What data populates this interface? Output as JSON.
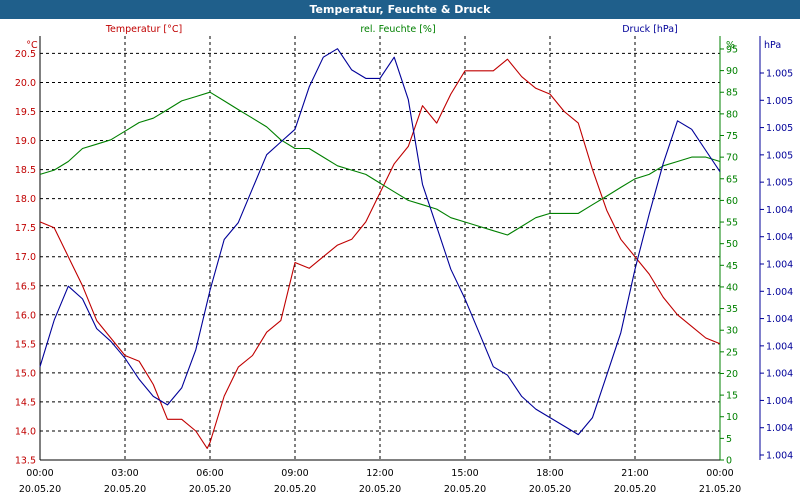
{
  "window_title": "Temperatur, Feuchte & Druck",
  "colors": {
    "temperature": "#c00000",
    "humidity": "#008000",
    "pressure": "#000099",
    "titlebar": "#1f5f8b",
    "axis_text": "#000000"
  },
  "chart_data": {
    "type": "line",
    "title": "Temperatur, Feuchte & Druck",
    "grid": true,
    "x_ticks": [
      {
        "time": "00:00",
        "date": "20.05.20"
      },
      {
        "time": "03:00",
        "date": "20.05.20"
      },
      {
        "time": "06:00",
        "date": "20.05.20"
      },
      {
        "time": "09:00",
        "date": "20.05.20"
      },
      {
        "time": "12:00",
        "date": "20.05.20"
      },
      {
        "time": "15:00",
        "date": "20.05.20"
      },
      {
        "time": "18:00",
        "date": "20.05.20"
      },
      {
        "time": "21:00",
        "date": "20.05.20"
      },
      {
        "time": "00:00",
        "date": "21.05.20"
      }
    ],
    "x_range_hours": [
      0,
      24
    ],
    "axes": {
      "temperature": {
        "label": "Temperatur [°C]",
        "unit": "°C",
        "ylim": [
          13.5,
          20.8
        ],
        "ticks": [
          "13.5",
          "14.0",
          "14.5",
          "15.0",
          "15.5",
          "16.0",
          "16.5",
          "17.0",
          "17.5",
          "18.0",
          "18.5",
          "19.0",
          "19.5",
          "20.0",
          "20.5"
        ]
      },
      "humidity": {
        "label": "rel. Feuchte [%]",
        "unit": "%",
        "ylim": [
          0,
          98
        ],
        "ticks": [
          "0",
          "5",
          "10",
          "15",
          "20",
          "25",
          "30",
          "35",
          "40",
          "45",
          "50",
          "55",
          "60",
          "65",
          "70",
          "75",
          "80",
          "85",
          "90",
          "95"
        ]
      },
      "pressure": {
        "unit": "hPa",
        "ylim": [
          0,
          1
        ],
        "ticks": [
          "1.004",
          "1.004",
          "1.004",
          "1.004",
          "1.004",
          "1.004",
          "1.004",
          "1.004",
          "1.004",
          "1.004",
          "1.005",
          "1.005",
          "1.005",
          "1.005",
          "1.005"
        ]
      }
    },
    "series": [
      {
        "name": "Temperatur [°C]",
        "axis": "temperature",
        "points": [
          [
            0,
            17.6
          ],
          [
            0.5,
            17.5
          ],
          [
            1,
            17.0
          ],
          [
            1.5,
            16.5
          ],
          [
            2,
            15.9
          ],
          [
            2.5,
            15.6
          ],
          [
            3,
            15.3
          ],
          [
            3.5,
            15.2
          ],
          [
            4,
            14.8
          ],
          [
            4.5,
            14.2
          ],
          [
            5,
            14.2
          ],
          [
            5.5,
            14.0
          ],
          [
            5.9,
            13.7
          ],
          [
            6,
            13.8
          ],
          [
            6.5,
            14.6
          ],
          [
            7,
            15.1
          ],
          [
            7.5,
            15.3
          ],
          [
            8,
            15.7
          ],
          [
            8.5,
            15.9
          ],
          [
            9,
            16.9
          ],
          [
            9.5,
            16.8
          ],
          [
            10,
            17.0
          ],
          [
            10.5,
            17.2
          ],
          [
            11,
            17.3
          ],
          [
            11.5,
            17.6
          ],
          [
            12,
            18.1
          ],
          [
            12.5,
            18.6
          ],
          [
            13,
            18.9
          ],
          [
            13.5,
            19.6
          ],
          [
            14,
            19.3
          ],
          [
            14.5,
            19.8
          ],
          [
            15,
            20.2
          ],
          [
            15.5,
            20.2
          ],
          [
            16,
            20.2
          ],
          [
            16.5,
            20.4
          ],
          [
            17,
            20.1
          ],
          [
            17.5,
            19.9
          ],
          [
            18,
            19.8
          ],
          [
            18.5,
            19.5
          ],
          [
            19,
            19.3
          ],
          [
            19.5,
            18.5
          ],
          [
            20,
            17.8
          ],
          [
            20.5,
            17.3
          ],
          [
            21,
            17.0
          ],
          [
            21.5,
            16.7
          ],
          [
            22,
            16.3
          ],
          [
            22.5,
            16.0
          ],
          [
            23,
            15.8
          ],
          [
            23.5,
            15.6
          ],
          [
            24,
            15.5
          ]
        ]
      },
      {
        "name": "rel. Feuchte [%]",
        "axis": "humidity",
        "points": [
          [
            0,
            66
          ],
          [
            0.5,
            67
          ],
          [
            1,
            69
          ],
          [
            1.5,
            72
          ],
          [
            2,
            73
          ],
          [
            2.5,
            74
          ],
          [
            3,
            76
          ],
          [
            3.5,
            78
          ],
          [
            4,
            79
          ],
          [
            4.5,
            81
          ],
          [
            5,
            83
          ],
          [
            5.5,
            84
          ],
          [
            6,
            85
          ],
          [
            6.5,
            83
          ],
          [
            7,
            81
          ],
          [
            7.5,
            79
          ],
          [
            8,
            77
          ],
          [
            8.5,
            74
          ],
          [
            9,
            72
          ],
          [
            9.5,
            72
          ],
          [
            10,
            70
          ],
          [
            10.5,
            68
          ],
          [
            11,
            67
          ],
          [
            11.5,
            66
          ],
          [
            12,
            64
          ],
          [
            12.5,
            62
          ],
          [
            13,
            60
          ],
          [
            13.5,
            59
          ],
          [
            14,
            58
          ],
          [
            14.5,
            56
          ],
          [
            15,
            55
          ],
          [
            15.5,
            54
          ],
          [
            16,
            53
          ],
          [
            16.5,
            52
          ],
          [
            17,
            54
          ],
          [
            17.5,
            56
          ],
          [
            18,
            57
          ],
          [
            18.5,
            57
          ],
          [
            19,
            57
          ],
          [
            19.5,
            59
          ],
          [
            20,
            61
          ],
          [
            20.5,
            63
          ],
          [
            21,
            65
          ],
          [
            21.5,
            66
          ],
          [
            22,
            68
          ],
          [
            22.5,
            69
          ],
          [
            23,
            70
          ],
          [
            23.5,
            70
          ],
          [
            24,
            69
          ]
        ]
      },
      {
        "name": "Druck [hPa]",
        "axis": "pressure",
        "points": [
          [
            0,
            0.22
          ],
          [
            0.5,
            0.33
          ],
          [
            1,
            0.41
          ],
          [
            1.5,
            0.38
          ],
          [
            2,
            0.31
          ],
          [
            2.5,
            0.28
          ],
          [
            3,
            0.24
          ],
          [
            3.5,
            0.19
          ],
          [
            4,
            0.15
          ],
          [
            4.5,
            0.13
          ],
          [
            5,
            0.17
          ],
          [
            5.5,
            0.26
          ],
          [
            6,
            0.4
          ],
          [
            6.5,
            0.52
          ],
          [
            7,
            0.56
          ],
          [
            7.5,
            0.64
          ],
          [
            8,
            0.72
          ],
          [
            8.5,
            0.75
          ],
          [
            9,
            0.78
          ],
          [
            9.5,
            0.88
          ],
          [
            10,
            0.95
          ],
          [
            10.5,
            0.97
          ],
          [
            11,
            0.92
          ],
          [
            11.5,
            0.9
          ],
          [
            12,
            0.9
          ],
          [
            12.5,
            0.95
          ],
          [
            13,
            0.85
          ],
          [
            13.5,
            0.65
          ],
          [
            14,
            0.55
          ],
          [
            14.5,
            0.45
          ],
          [
            15,
            0.38
          ],
          [
            15.5,
            0.3
          ],
          [
            16,
            0.22
          ],
          [
            16.5,
            0.2
          ],
          [
            17,
            0.15
          ],
          [
            17.5,
            0.12
          ],
          [
            18,
            0.1
          ],
          [
            18.5,
            0.08
          ],
          [
            19,
            0.06
          ],
          [
            19.5,
            0.1
          ],
          [
            20,
            0.2
          ],
          [
            20.5,
            0.3
          ],
          [
            21,
            0.45
          ],
          [
            21.5,
            0.58
          ],
          [
            22,
            0.7
          ],
          [
            22.5,
            0.8
          ],
          [
            23,
            0.78
          ],
          [
            23.5,
            0.73
          ],
          [
            24,
            0.68
          ]
        ]
      }
    ]
  }
}
